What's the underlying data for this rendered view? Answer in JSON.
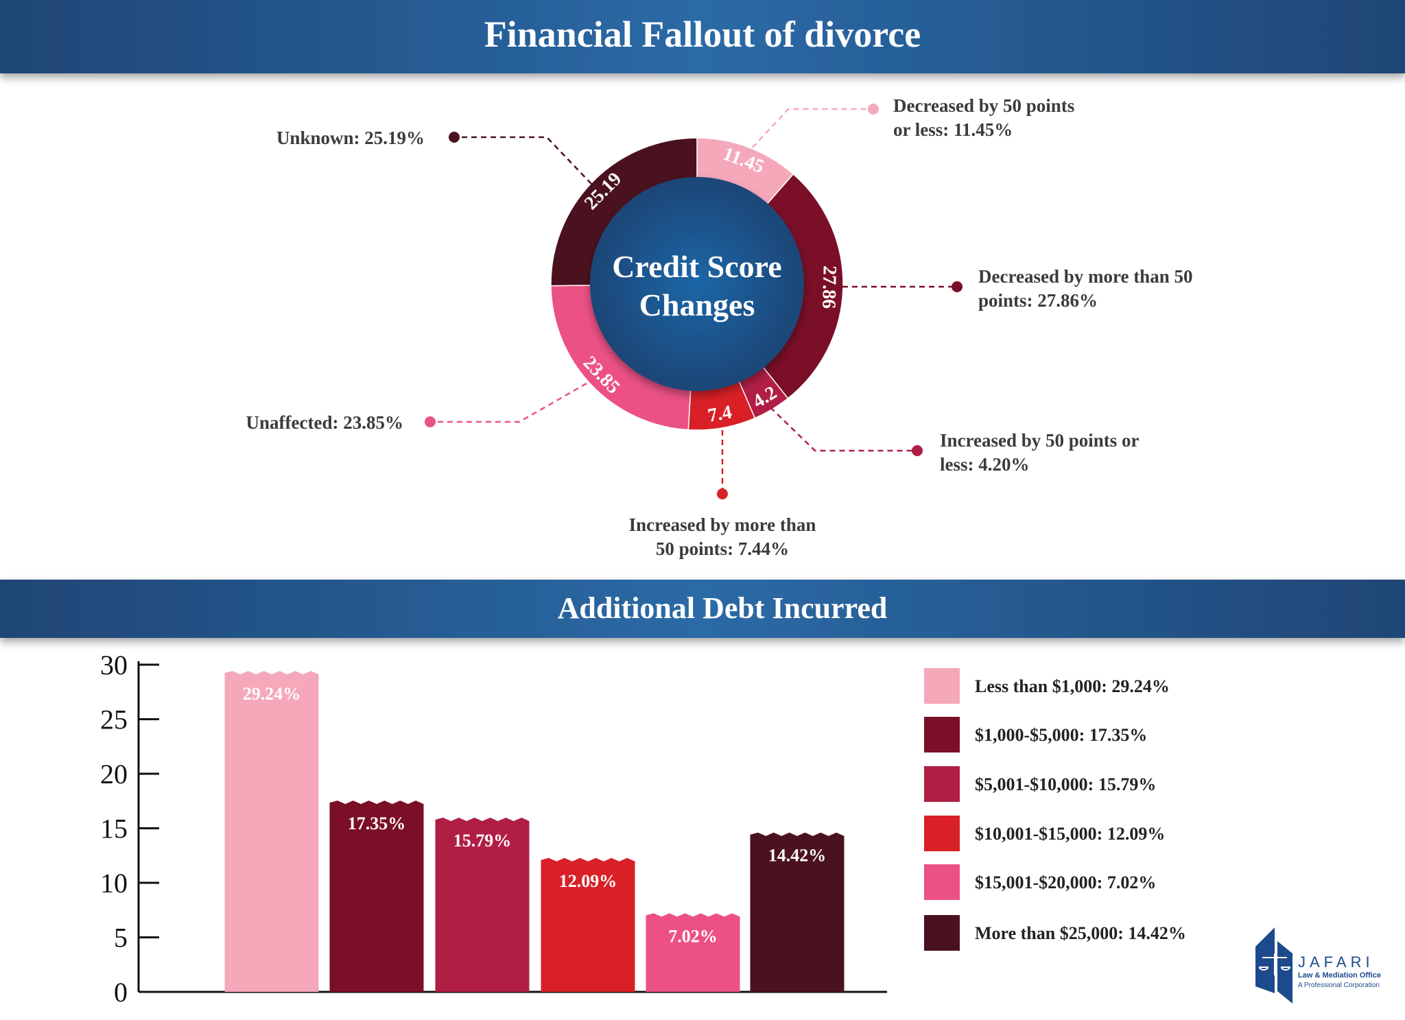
{
  "header": {
    "title": "Financial Fallout of divorce"
  },
  "section2": {
    "title": "Additional Debt Incurred"
  },
  "logo": {
    "name": "JAFARI",
    "line1": "Law & Mediation Office",
    "line2": "A Professional Corporation",
    "color": "#1d4a8c"
  },
  "chart_data": [
    {
      "type": "pie",
      "variant": "donut",
      "center_label": [
        "Credit Score",
        "Changes"
      ],
      "slices": [
        {
          "name": "Decreased by 50 points or less",
          "value": 11.45,
          "segment_label": "11.45",
          "callout": [
            "Decreased by 50 points",
            "or less: 11.45%"
          ],
          "color": "#f6a8bb"
        },
        {
          "name": "Decreased by more than 50 points",
          "value": 27.86,
          "segment_label": "27.86",
          "callout": [
            "Decreased by more than 50",
            "points: 27.86%"
          ],
          "color": "#7a0f27"
        },
        {
          "name": "Increased by 50 points or less",
          "value": 4.2,
          "segment_label": "4.2",
          "callout": [
            "Increased by 50 points or",
            "less: 4.20%"
          ],
          "color": "#b01e45"
        },
        {
          "name": "Increased by more than 50 points",
          "value": 7.44,
          "segment_label": "7.4",
          "callout": [
            "Increased by more than",
            "50 points: 7.44%"
          ],
          "color": "#d92027"
        },
        {
          "name": "Unaffected",
          "value": 23.85,
          "segment_label": "23.85",
          "callout": [
            "Unaffected: 23.85%"
          ],
          "color": "#ec5185"
        },
        {
          "name": "Unknown",
          "value": 25.19,
          "segment_label": "25.19",
          "callout": [
            "Unknown: 25.19%"
          ],
          "color": "#4a121f"
        }
      ]
    },
    {
      "type": "bar",
      "categories": [
        "Less than $1,000",
        "$1,000-$5,000",
        "$5,001-$10,000",
        "$10,001-$15,000",
        "$15,001-$20,000",
        "More than $25,000"
      ],
      "values": [
        29.24,
        17.35,
        15.79,
        12.09,
        7.02,
        14.42
      ],
      "data_labels": [
        "29.24%",
        "17.35%",
        "15.79%",
        "12.09%",
        "7.02%",
        "14.42%"
      ],
      "colors": [
        "#f6a8bb",
        "#7a0f27",
        "#b01e45",
        "#d92027",
        "#ec5185",
        "#4a121f"
      ],
      "legend": [
        "Less than $1,000: 29.24%",
        "$1,000-$5,000: 17.35%",
        "$5,001-$10,000: 15.79%",
        "$10,001-$15,000: 12.09%",
        "$15,001-$20,000: 7.02%",
        "More than $25,000: 14.42%"
      ],
      "legend_position": "right",
      "ylim": [
        0,
        30
      ],
      "yticks": [
        "0",
        "5",
        "10",
        "15",
        "20",
        "25",
        "30"
      ],
      "grid": false
    }
  ]
}
